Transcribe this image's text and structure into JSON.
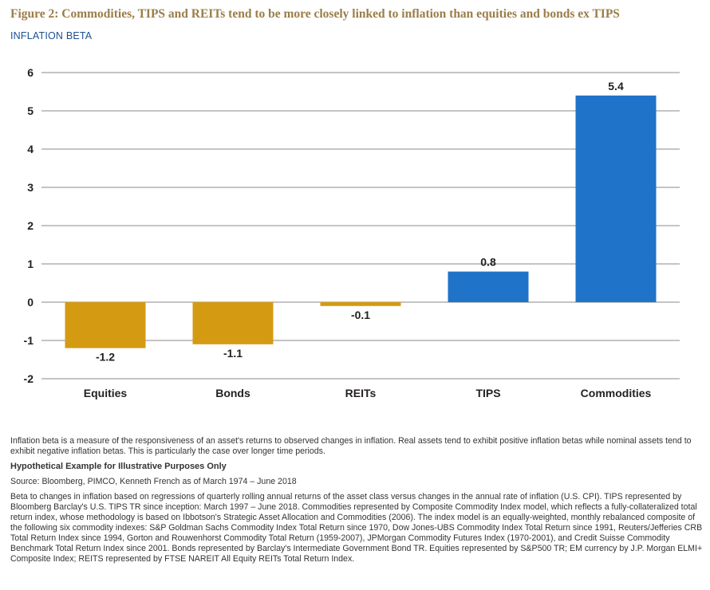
{
  "figure_title": "Figure 2: Commodities, TIPS and REITs tend to be more closely linked to inflation than equities and bonds ex TIPS",
  "chart_subtitle": "INFLATION BETA",
  "colors": {
    "negative": "#d49a12",
    "positive": "#1f73c9",
    "axis": "#888888"
  },
  "chart_data": {
    "type": "bar",
    "categories": [
      "Equities",
      "Bonds",
      "REITs",
      "TIPS",
      "Commodities"
    ],
    "values": [
      -1.2,
      -1.1,
      -0.1,
      0.8,
      5.4
    ],
    "data_labels": [
      "-1.2",
      "-1.1",
      "-0.1",
      "0.8",
      "5.4"
    ],
    "yticks": [
      "6",
      "5",
      "4",
      "3",
      "2",
      "1",
      "0",
      "-1",
      "-2"
    ],
    "ylim": [
      -2,
      6
    ],
    "grid": true,
    "legend": "none"
  },
  "notes": {
    "description": "Inflation beta is a measure of the responsiveness of an asset's returns to observed changes in inflation. Real assets tend to exhibit positive inflation betas while nominal assets tend to exhibit negative inflation betas. This is particularly the case over longer time periods.",
    "hypothetical": "Hypothetical Example for Illustrative Purposes Only",
    "source": "Source: Bloomberg, PIMCO, Kenneth French as of March 1974 – June 2018",
    "methodology": "Beta to changes in inflation based on regressions of quarterly rolling annual returns of the asset class versus changes in the annual rate of inflation (U.S. CPI). TIPS represented by Bloomberg Barclay's U.S. TIPS TR since inception: March 1997 – June 2018. Commodities represented by Composite Commodity Index model, which reflects a fully-collateralized total return index, whose methodology is based on Ibbotson's Strategic Asset Allocation and Commodities (2006). The index model is an equally-weighted, monthly rebalanced composite of the following six commodity indexes: S&P Goldman Sachs Commodity Index Total Return since 1970, Dow Jones-UBS Commodity Index Total Return since 1991, Reuters/Jefferies CRB Total Return Index since 1994, Gorton and Rouwenhorst Commodity Total Return (1959-2007), JPMorgan Commodity Futures Index (1970-2001), and Credit Suisse Commodity Benchmark Total Return Index since 2001. Bonds represented by Barclay's Intermediate Government Bond TR. Equities represented by S&P500 TR; EM currency by J.P. Morgan ELMI+ Composite Index; REITS represented by FTSE NAREIT All Equity REITs Total Return Index."
  }
}
